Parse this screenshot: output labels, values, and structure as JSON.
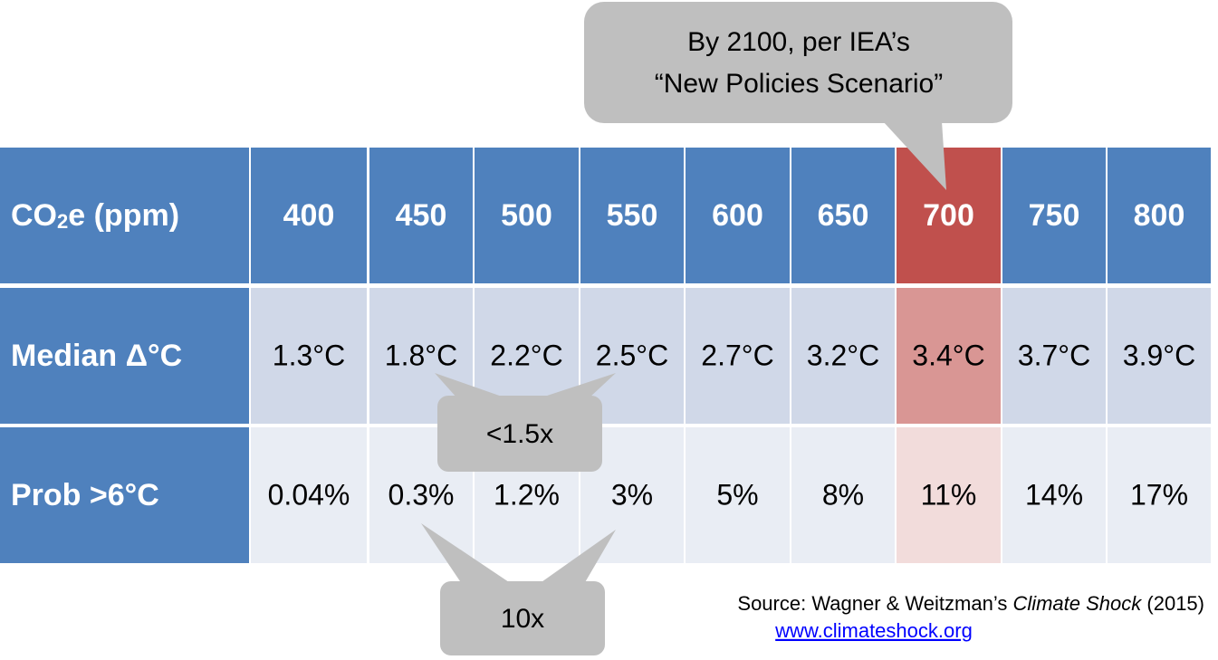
{
  "table": {
    "header": {
      "label_parts": [
        "CO",
        "2",
        "e (ppm)"
      ],
      "values": [
        "400",
        "450",
        "500",
        "550",
        "600",
        "650",
        "700",
        "750",
        "800"
      ]
    },
    "rows": [
      {
        "label": "Median Δ°C",
        "values": [
          "1.3°C",
          "1.8°C",
          "2.2°C",
          "2.5°C",
          "2.7°C",
          "3.2°C",
          "3.4°C",
          "3.7°C",
          "3.9°C"
        ]
      },
      {
        "label": "Prob >6°C",
        "values": [
          "0.04%",
          "0.3%",
          "1.2%",
          "3%",
          "5%",
          "8%",
          "11%",
          "14%",
          "17%"
        ]
      }
    ]
  },
  "callouts": {
    "scenario": [
      "By 2100, per IEA’s",
      "“New Policies Scenario”"
    ],
    "median_ratio": "<1.5x",
    "prob_ratio": "10x"
  },
  "source": {
    "prefix": "Source: Wagner & Weitzman’s ",
    "book": "Climate Shock",
    "suffix": " (2015)",
    "link": "www.climateshock.org"
  }
}
